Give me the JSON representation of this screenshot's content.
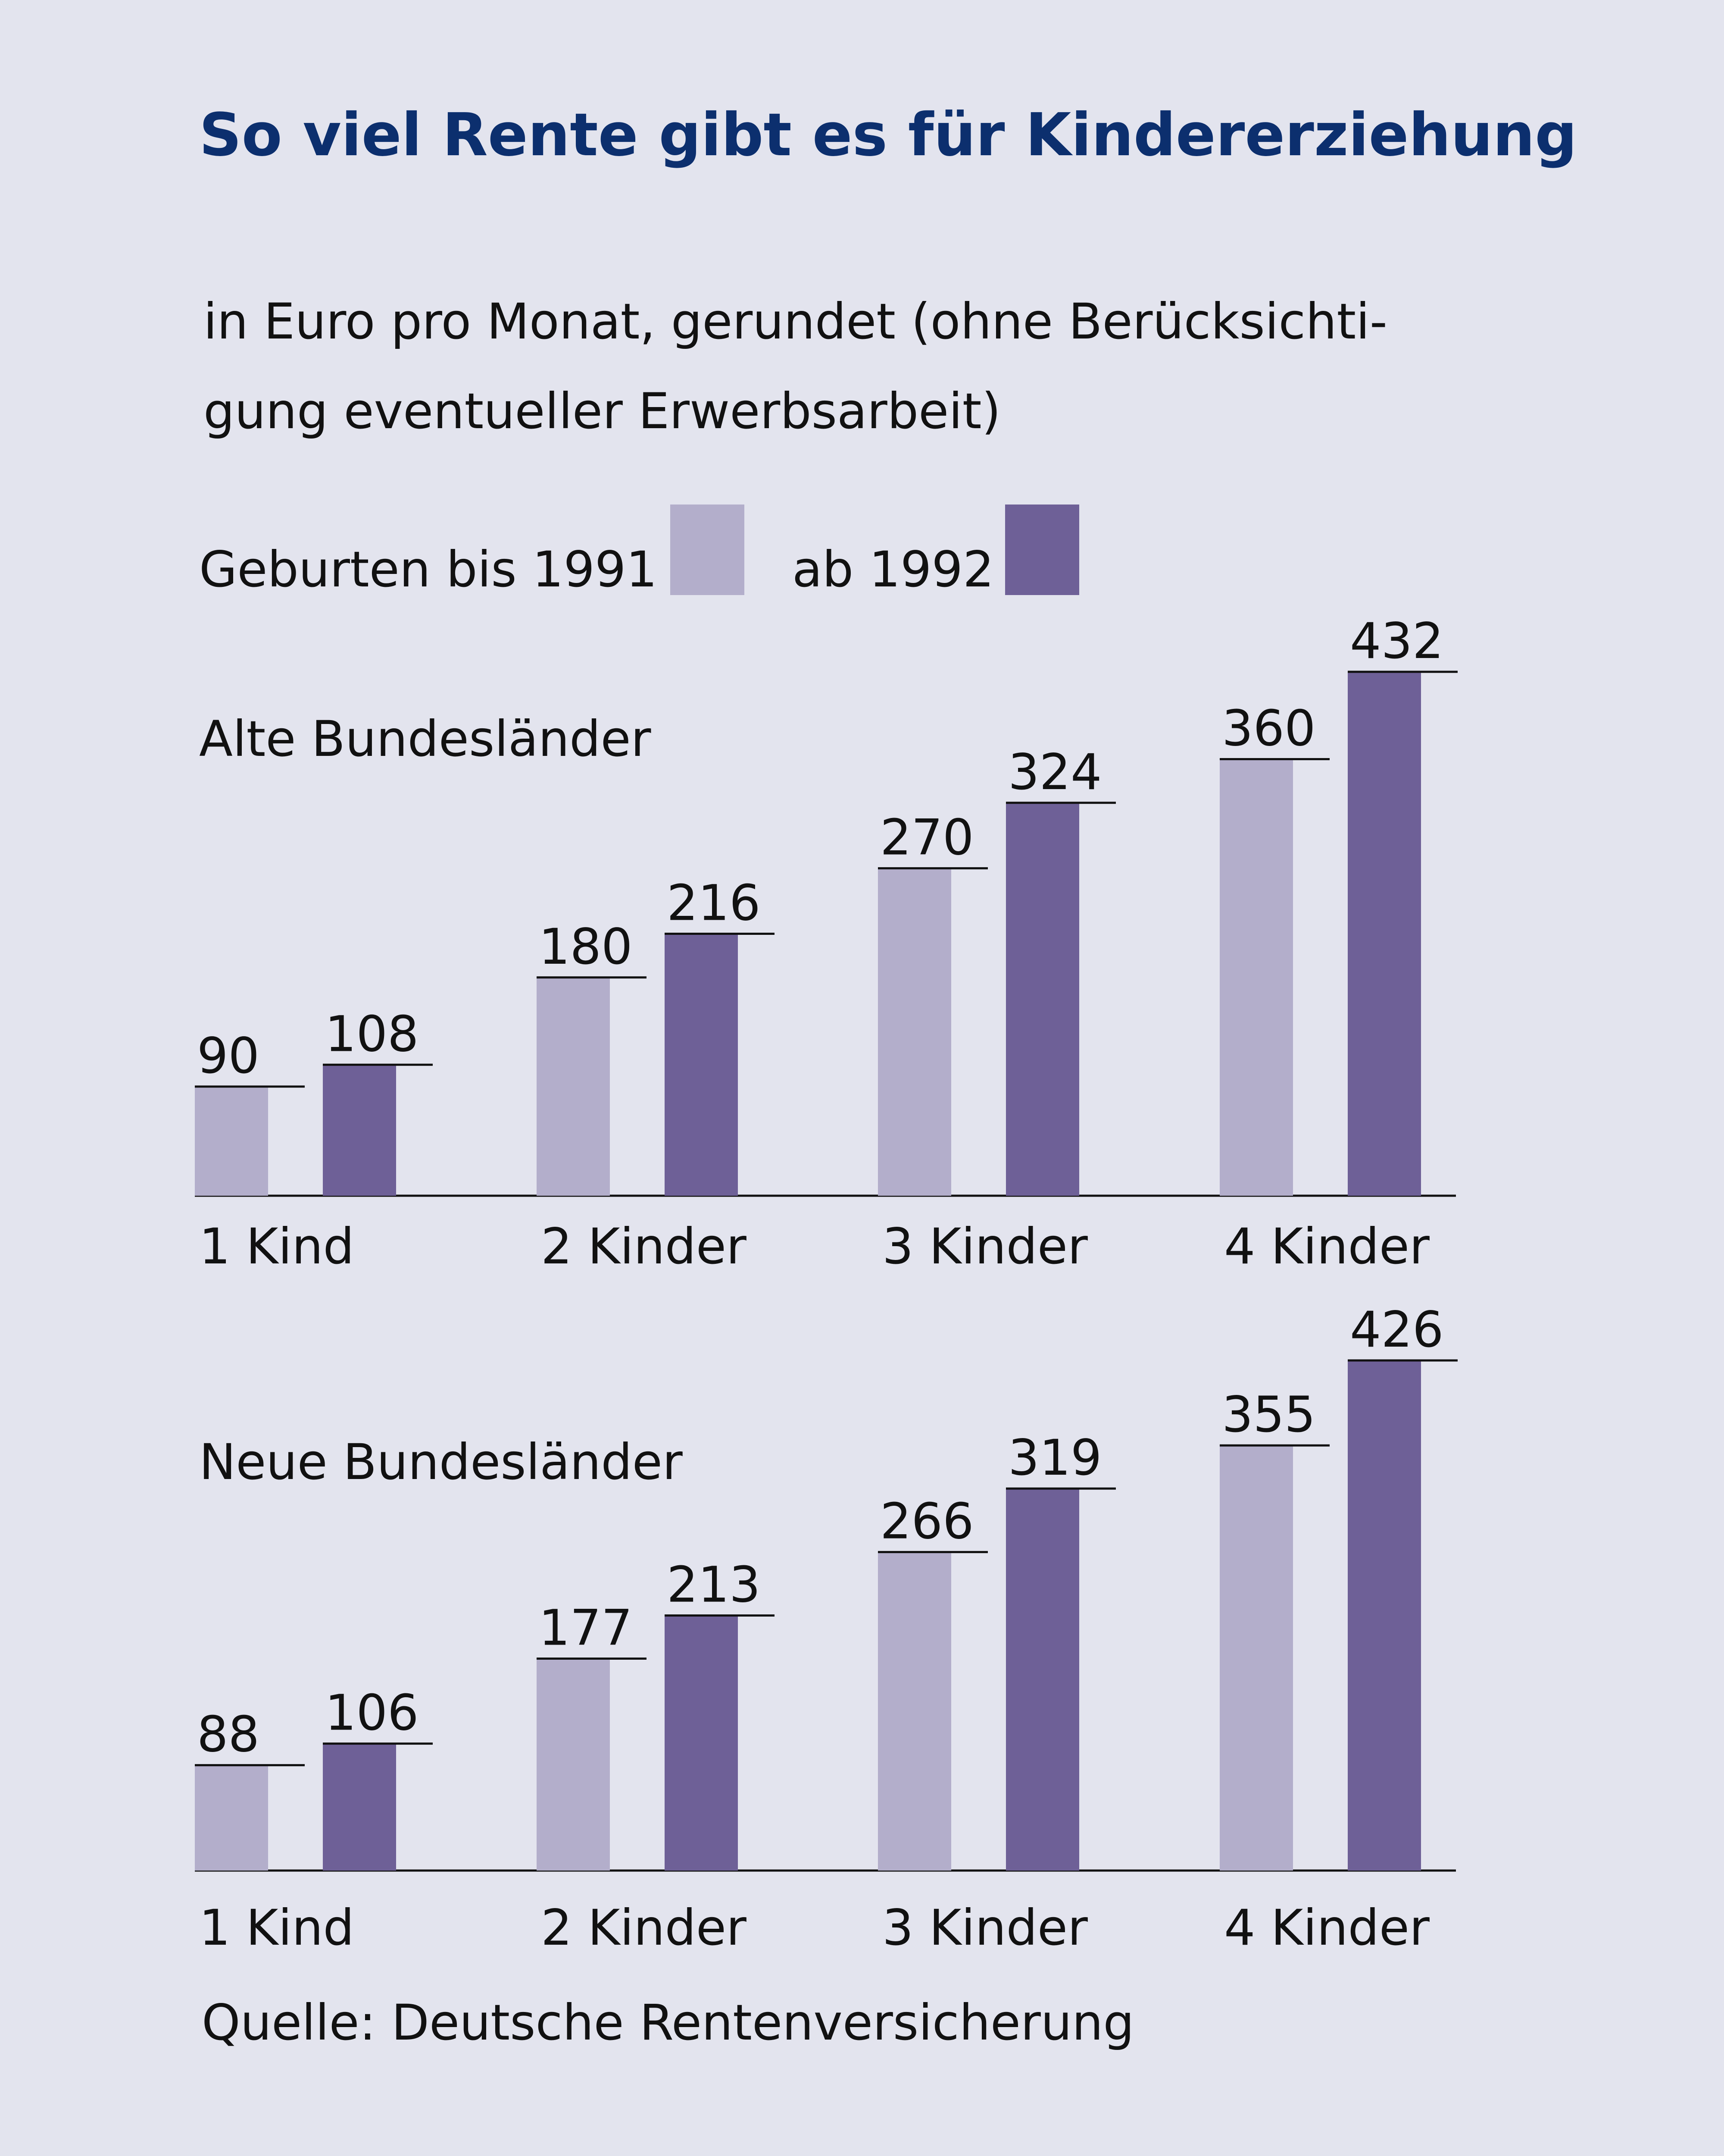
{
  "title": "So viel Rente gibt es für Kindererziehung",
  "subtitle_line1": "in Euro pro Monat, gerundet (ohne Berücksichti-",
  "subtitle_line2": "gung eventueller Erwerbsarbeit)",
  "legend": {
    "series1_label": "Geburten bis 1991",
    "series2_label": "ab 1992"
  },
  "source": "Quelle: Deutsche Rentenversicherung",
  "colors": {
    "background": "#e3e4ee",
    "title": "#0c2f6e",
    "series1": "#b3aecb",
    "series2": "#6e6097"
  },
  "chart_data": [
    {
      "type": "bar",
      "title": "Alte Bundesländer",
      "categories": [
        "1 Kind",
        "2 Kinder",
        "3 Kinder",
        "4 Kinder"
      ],
      "series": [
        {
          "name": "Geburten bis 1991",
          "values": [
            90,
            180,
            270,
            360
          ]
        },
        {
          "name": "ab 1992",
          "values": [
            108,
            216,
            324,
            432
          ]
        }
      ],
      "ylim": [
        0,
        432
      ],
      "grid": false,
      "legend_position": "top-left"
    },
    {
      "type": "bar",
      "title": "Neue Bundesländer",
      "categories": [
        "1 Kind",
        "2 Kinder",
        "3 Kinder",
        "4 Kinder"
      ],
      "series": [
        {
          "name": "Geburten bis 1991",
          "values": [
            88,
            177,
            266,
            355
          ]
        },
        {
          "name": "ab 1992",
          "values": [
            106,
            213,
            319,
            426
          ]
        }
      ],
      "ylim": [
        0,
        426
      ],
      "grid": false,
      "legend_position": "top-left"
    }
  ]
}
